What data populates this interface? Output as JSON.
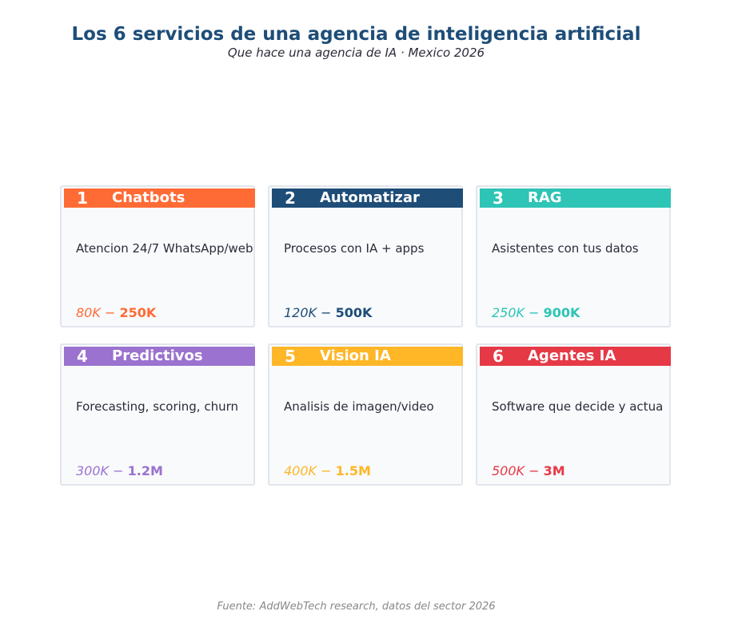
{
  "header": {
    "title": "Los 6 servicios de una agencia de inteligencia artificial",
    "subtitle": "Que hace una agencia de IA · Mexico 2026"
  },
  "services": [
    {
      "number": "1",
      "name": "Chatbots",
      "description": "Atencion 24/7 WhatsApp/web",
      "price_low": "80K",
      "price_high": "250K",
      "color": "#ff6b35"
    },
    {
      "number": "2",
      "name": "Automatizar",
      "description": "Procesos con IA + apps",
      "price_low": "120K",
      "price_high": "500K",
      "color": "#1e4d78"
    },
    {
      "number": "3",
      "name": "RAG",
      "description": "Asistentes con tus datos",
      "price_low": "250K",
      "price_high": "900K",
      "color": "#2ec4b6"
    },
    {
      "number": "4",
      "name": "Predictivos",
      "description": "Forecasting, scoring, churn",
      "price_low": "300K",
      "price_high": "1.2M",
      "color": "#9b72cf"
    },
    {
      "number": "5",
      "name": "Vision IA",
      "description": "Analisis de imagen/video",
      "price_low": "400K",
      "price_high": "1.5M",
      "color": "#ffb627"
    },
    {
      "number": "6",
      "name": "Agentes IA",
      "description": "Software que decide y actua",
      "price_low": "500K",
      "price_high": "3M",
      "color": "#e63946"
    }
  ],
  "footer": {
    "source": "Fuente: AddWebTech research, datos del sector 2026"
  }
}
